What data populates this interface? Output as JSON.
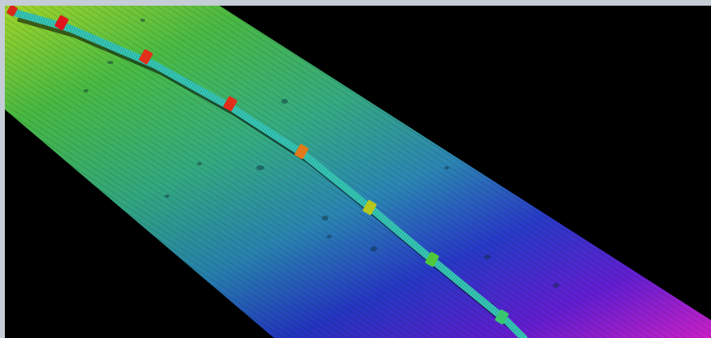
{
  "viewer": {
    "background_color": "#000000",
    "frame_color": "#c5cdd6"
  },
  "image": {
    "subject": "multibeam-bathymetry-seabed-with-pipeline",
    "depth_colormap": [
      "#e8141a",
      "#f07a12",
      "#d8d81a",
      "#2fbf2f",
      "#1fa6a0",
      "#2036c8",
      "#5a0fd0",
      "#c412c8"
    ],
    "pipeline_color": "#8a8a28",
    "pipeline_joint_count": 8
  }
}
